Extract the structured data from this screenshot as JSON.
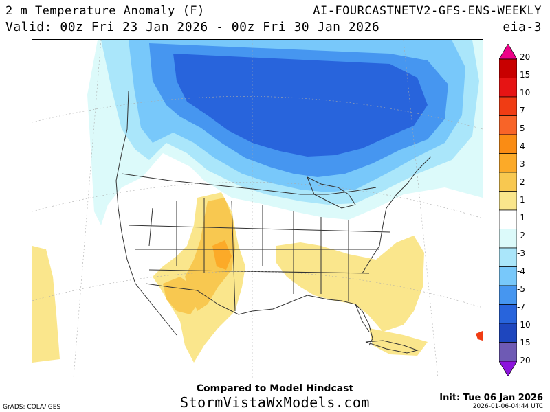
{
  "header": {
    "title": "2 m Temperature Anomaly (F)",
    "model": "AI-FOURCASTNETV2-GFS-ENS-WEEKLY",
    "valid": "Valid: 00z Fri 23 Jan 2026 - 00z Fri 30 Jan 2026",
    "model_id": "eia-3"
  },
  "colorbar": {
    "levels": [
      "20",
      "15",
      "10",
      "7",
      "5",
      "4",
      "3",
      "2",
      "1",
      "-1",
      "-2",
      "-3",
      "-4",
      "-5",
      "-7",
      "-10",
      "-15",
      "-20"
    ],
    "colors": [
      "#ee0088",
      "#c80000",
      "#e61414",
      "#f03c14",
      "#f86428",
      "#fa8c14",
      "#fcaa28",
      "#f8c850",
      "#fae68c",
      "#ffffff",
      "#dcfafa",
      "#aae6fa",
      "#78c8fa",
      "#4696f0",
      "#2864dc",
      "#1e46be",
      "#6e5ab4",
      "#8c14dc"
    ]
  },
  "map": {
    "colors": {
      "cold_deep": "#2864dc",
      "cold_mid": "#4696f0",
      "cold_light": "#78c8fa",
      "cold_pale": "#aae6fa",
      "cold_faint": "#dcfafa",
      "warm_light": "#fae68c",
      "warm_mid": "#f8c850",
      "warm_strong": "#fcaa28",
      "hot_spot": "#f03c14"
    }
  },
  "footer": {
    "compared": "Compared to Model Hindcast",
    "site": "StormVistaWxModels.com",
    "init": "Init: Tue 06 Jan 2026",
    "stamp": "2026-01-06-04:44 UTC",
    "grads": "GrADS: COLA/IGES"
  }
}
